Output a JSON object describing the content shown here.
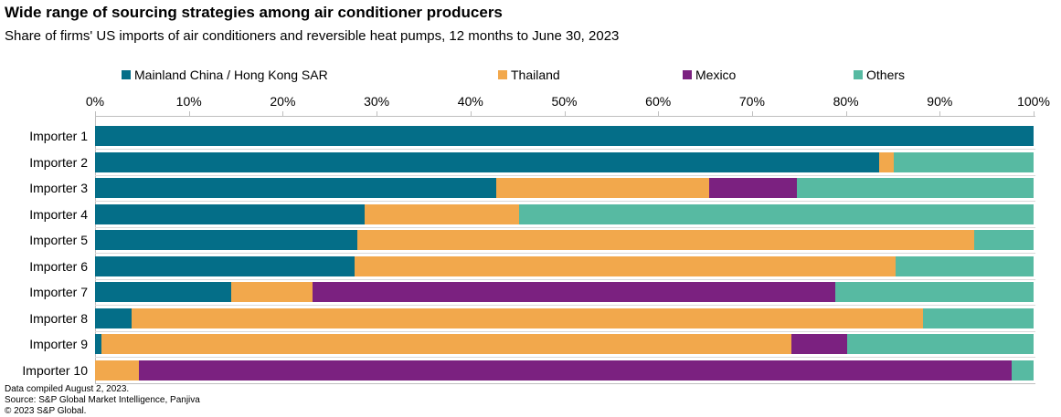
{
  "title": "Wide range of sourcing strategies among air conditioner producers",
  "subtitle": "Share of firms' US imports of air conditioners and reversible heat pumps, 12 months to June 30, 2023",
  "legend": [
    {
      "label": "Mainland China / Hong Kong SAR",
      "color": "#046E88"
    },
    {
      "label": "Thailand",
      "color": "#F2A84C"
    },
    {
      "label": "Mexico",
      "color": "#7B2180"
    },
    {
      "label": "Others",
      "color": "#57BAA2"
    }
  ],
  "footer": [
    "Data compiled August 2, 2023.",
    "Source: S&P Global Market Intelligence, Panjiva",
    "© 2023 S&P Global."
  ],
  "chart_data": {
    "type": "bar",
    "orientation": "horizontal-stacked",
    "title": "Wide range of sourcing strategies among air conditioner producers",
    "subtitle": "Share of firms' US imports of air conditioners and reversible heat pumps, 12 months to June 30, 2023",
    "xlim": [
      0,
      100
    ],
    "x_tick_labels": [
      "0%",
      "10%",
      "20%",
      "30%",
      "40%",
      "50%",
      "60%",
      "70%",
      "80%",
      "90%",
      "100%"
    ],
    "grid": false,
    "legend_position": "top",
    "unit": "percent",
    "categories": [
      "Importer 1",
      "Importer 2",
      "Importer 3",
      "Importer 4",
      "Importer 5",
      "Importer 6",
      "Importer 7",
      "Importer 8",
      "Importer 9",
      "Importer 10"
    ],
    "series": [
      {
        "name": "Mainland China / Hong Kong SAR",
        "color": "#046E88",
        "values": [
          100,
          83.5,
          42.7,
          28.7,
          27.9,
          27.7,
          14.5,
          3.9,
          0.7,
          0
        ]
      },
      {
        "name": "Thailand",
        "color": "#F2A84C",
        "values": [
          0,
          1.6,
          22.7,
          16.5,
          65.8,
          57.6,
          8.7,
          84.3,
          73.5,
          4.7
        ]
      },
      {
        "name": "Mexico",
        "color": "#7B2180",
        "values": [
          0,
          0,
          9.4,
          0,
          0,
          0,
          55.7,
          0,
          5.9,
          93.0
        ]
      },
      {
        "name": "Others",
        "color": "#57BAA2",
        "values": [
          0,
          14.9,
          25.2,
          54.8,
          6.3,
          14.7,
          21.1,
          11.8,
          19.9,
          2.3
        ]
      }
    ]
  }
}
